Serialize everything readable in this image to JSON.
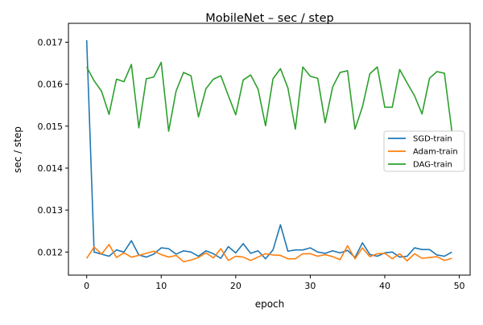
{
  "chart_data": {
    "type": "line",
    "title": "MobileNet – sec / step",
    "xlabel": "epoch",
    "ylabel": "sec / step",
    "xlim": [
      -2.45,
      51.45
    ],
    "ylim": [
      0.01145,
      0.01745
    ],
    "xticks": [
      0,
      10,
      20,
      30,
      40,
      50
    ],
    "yticks": [
      0.012,
      0.013,
      0.014,
      0.015,
      0.016,
      0.017
    ],
    "ytick_labels": [
      "0.012",
      "0.013",
      "0.014",
      "0.015",
      "0.016",
      "0.017"
    ],
    "grid": false,
    "legend_position": "center-right",
    "x": [
      0,
      1,
      2,
      3,
      4,
      5,
      6,
      7,
      8,
      9,
      10,
      11,
      12,
      13,
      14,
      15,
      16,
      17,
      18,
      19,
      20,
      21,
      22,
      23,
      24,
      25,
      26,
      27,
      28,
      29,
      30,
      31,
      32,
      33,
      34,
      35,
      36,
      37,
      38,
      39,
      40,
      41,
      42,
      43,
      44,
      45,
      46,
      47,
      48,
      49
    ],
    "series": [
      {
        "name": "SGD-train",
        "color": "#1f77b4",
        "values": [
          0.01705,
          0.012,
          0.01195,
          0.0119,
          0.01205,
          0.012,
          0.01227,
          0.01193,
          0.01188,
          0.01195,
          0.0121,
          0.01208,
          0.01195,
          0.01203,
          0.012,
          0.0119,
          0.01203,
          0.01196,
          0.01185,
          0.01213,
          0.01198,
          0.0122,
          0.01197,
          0.01203,
          0.01184,
          0.01205,
          0.01265,
          0.01202,
          0.01205,
          0.01205,
          0.0121,
          0.012,
          0.01197,
          0.01203,
          0.01198,
          0.01204,
          0.01187,
          0.01222,
          0.01194,
          0.0119,
          0.01198,
          0.012,
          0.01188,
          0.0119,
          0.0121,
          0.01206,
          0.01206,
          0.01193,
          0.0119,
          0.012
        ]
      },
      {
        "name": "Adam-train",
        "color": "#ff7f0e",
        "values": [
          0.01185,
          0.01212,
          0.01195,
          0.01218,
          0.01187,
          0.01198,
          0.01188,
          0.01192,
          0.01197,
          0.01202,
          0.01194,
          0.01188,
          0.01192,
          0.01177,
          0.01181,
          0.01187,
          0.01198,
          0.01186,
          0.01208,
          0.0118,
          0.0119,
          0.01188,
          0.0118,
          0.01188,
          0.01196,
          0.01193,
          0.01192,
          0.01184,
          0.01184,
          0.01196,
          0.01196,
          0.0119,
          0.01194,
          0.01189,
          0.01182,
          0.01215,
          0.01184,
          0.0121,
          0.01189,
          0.01196,
          0.01197,
          0.01184,
          0.01196,
          0.01179,
          0.01196,
          0.01185,
          0.01187,
          0.01189,
          0.0118,
          0.01185
        ]
      },
      {
        "name": "DAG-train",
        "color": "#2ca02c",
        "values": [
          0.01641,
          0.01608,
          0.01583,
          0.01528,
          0.01612,
          0.01606,
          0.01647,
          0.01496,
          0.01613,
          0.01617,
          0.01652,
          0.01488,
          0.01584,
          0.01628,
          0.0162,
          0.01522,
          0.01589,
          0.01612,
          0.0162,
          0.01573,
          0.01527,
          0.0161,
          0.01622,
          0.01588,
          0.01501,
          0.01613,
          0.01637,
          0.01591,
          0.01493,
          0.01641,
          0.01619,
          0.01614,
          0.01508,
          0.01593,
          0.01628,
          0.01632,
          0.01493,
          0.01546,
          0.01625,
          0.01641,
          0.01545,
          0.01545,
          0.01635,
          0.01603,
          0.01572,
          0.01529,
          0.01614,
          0.0163,
          0.01626,
          0.01488
        ]
      }
    ]
  }
}
